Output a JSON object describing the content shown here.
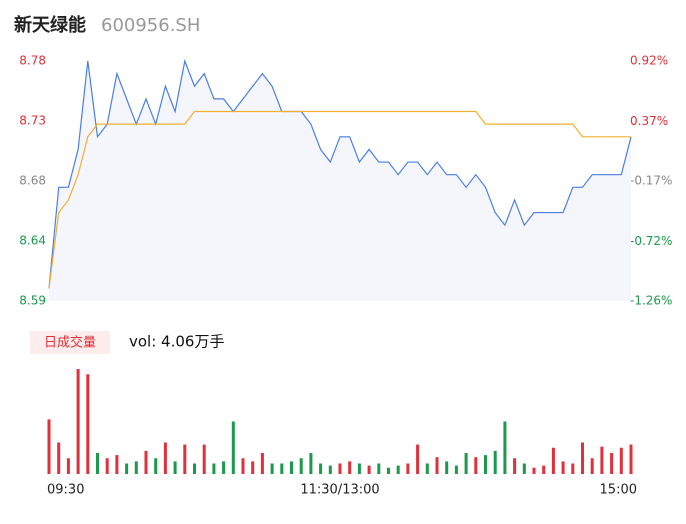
{
  "chart_data": {
    "type": "line",
    "title": "新天绿能",
    "subtitle": "600956.SH",
    "ylim": [
      8.59,
      8.78
    ],
    "yticks": [
      {
        "value": 8.78,
        "label": "8.78"
      },
      {
        "value": 8.7325,
        "label": "8.73"
      },
      {
        "value": 8.685,
        "label": "8.68"
      },
      {
        "value": 8.6375,
        "label": "8.64"
      },
      {
        "value": 8.59,
        "label": "8.59"
      }
    ],
    "ytick_colors": [
      "#e0303a",
      "#e0303a",
      "#888888",
      "#1a9a4a",
      "#1a9a4a"
    ],
    "y2lim": [
      -1.26,
      0.92
    ],
    "y2ticks": [
      {
        "value": 0.92,
        "label": "0.92%"
      },
      {
        "value": 0.37,
        "label": "0.37%"
      },
      {
        "value": -0.17,
        "label": "-0.17%"
      },
      {
        "value": -0.72,
        "label": "-0.72%"
      },
      {
        "value": -1.26,
        "label": "-1.26%"
      }
    ],
    "y2tick_colors": [
      "#e0303a",
      "#e0303a",
      "#888888",
      "#1a9a4a",
      "#1a9a4a"
    ],
    "xlim": [
      0,
      60
    ],
    "xticks": [
      {
        "value": 0,
        "label": "09:30"
      },
      {
        "value": 30,
        "label": "11:30/13:00"
      },
      {
        "value": 60,
        "label": "15:00"
      }
    ],
    "area_color": "#f4f6fc",
    "series": [
      {
        "color": "#4a7fe0",
        "values": [
          8.6,
          8.68,
          8.68,
          8.71,
          8.78,
          8.72,
          8.73,
          8.77,
          8.75,
          8.73,
          8.75,
          8.73,
          8.76,
          8.74,
          8.78,
          8.76,
          8.77,
          8.75,
          8.75,
          8.74,
          8.75,
          8.76,
          8.77,
          8.76,
          8.74,
          8.74,
          8.74,
          8.73,
          8.71,
          8.7,
          8.72,
          8.72,
          8.7,
          8.71,
          8.7,
          8.7,
          8.69,
          8.7,
          8.7,
          8.69,
          8.7,
          8.69,
          8.69,
          8.68,
          8.69,
          8.68,
          8.66,
          8.65,
          8.67,
          8.65,
          8.66,
          8.66,
          8.66,
          8.66,
          8.68,
          8.68,
          8.69,
          8.69,
          8.69,
          8.69,
          8.72
        ]
      },
      {
        "color": "#f0b030",
        "values": [
          8.6,
          8.66,
          8.67,
          8.69,
          8.72,
          8.73,
          8.73,
          8.73,
          8.73,
          8.73,
          8.73,
          8.73,
          8.73,
          8.73,
          8.73,
          8.74,
          8.74,
          8.74,
          8.74,
          8.74,
          8.74,
          8.74,
          8.74,
          8.74,
          8.74,
          8.74,
          8.74,
          8.74,
          8.74,
          8.74,
          8.74,
          8.74,
          8.74,
          8.74,
          8.74,
          8.74,
          8.74,
          8.74,
          8.74,
          8.74,
          8.74,
          8.74,
          8.74,
          8.74,
          8.74,
          8.73,
          8.73,
          8.73,
          8.73,
          8.73,
          8.73,
          8.73,
          8.73,
          8.73,
          8.73,
          8.72,
          8.72,
          8.72,
          8.72,
          8.72,
          8.72
        ]
      }
    ],
    "volume": {
      "label": "日成交量",
      "text": "vol: 4.06万手",
      "up_color": "#e0303a",
      "down_color": "#1a9a4a",
      "values": [
        520,
        300,
        150,
        1000,
        950,
        200,
        150,
        180,
        100,
        120,
        220,
        150,
        300,
        120,
        280,
        100,
        280,
        100,
        120,
        500,
        150,
        120,
        200,
        100,
        100,
        120,
        150,
        200,
        100,
        80,
        100,
        120,
        100,
        80,
        100,
        60,
        80,
        100,
        280,
        100,
        160,
        120,
        80,
        200,
        160,
        180,
        220,
        500,
        150,
        100,
        60,
        80,
        250,
        120,
        100,
        300,
        150,
        260,
        200,
        250,
        280
      ]
    }
  }
}
